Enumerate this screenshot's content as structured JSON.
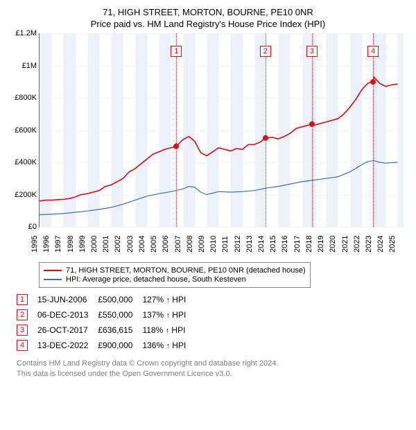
{
  "title_line1": "71, HIGH STREET, MORTON, BOURNE, PE10 0NR",
  "title_line2": "Price paid vs. HM Land Registry's House Price Index (HPI)",
  "chart": {
    "type": "line",
    "x_min": 1995,
    "x_max": 2025.5,
    "y_min": 0,
    "y_max": 1200000,
    "y_ticks": [
      0,
      200000,
      400000,
      600000,
      800000,
      1000000,
      1200000
    ],
    "y_tick_labels": [
      "£0",
      "£200K",
      "£400K",
      "£600K",
      "£800K",
      "£1M",
      "£1.2M"
    ],
    "x_ticks": [
      1995,
      1996,
      1997,
      1998,
      1999,
      2000,
      2001,
      2002,
      2003,
      2004,
      2005,
      2006,
      2007,
      2008,
      2009,
      2010,
      2011,
      2012,
      2013,
      2014,
      2015,
      2016,
      2017,
      2018,
      2019,
      2020,
      2021,
      2022,
      2023,
      2024,
      2025
    ],
    "background_color": "#ffffff",
    "grid_h_color": "#f2f2f2",
    "grid_v_color": "#f7f7f7",
    "vband_color": "rgba(200,215,240,0.35)",
    "vbands": [
      [
        1995,
        1996
      ],
      [
        1997,
        1998
      ],
      [
        1999,
        2000
      ],
      [
        2001,
        2002
      ],
      [
        2003,
        2004
      ],
      [
        2005,
        2006
      ],
      [
        2007,
        2008
      ],
      [
        2009,
        2010
      ],
      [
        2011,
        2012
      ],
      [
        2013,
        2014
      ],
      [
        2015,
        2016
      ],
      [
        2017,
        2018
      ],
      [
        2019,
        2020
      ],
      [
        2021,
        2022
      ],
      [
        2023,
        2024
      ],
      [
        2025,
        2025.5
      ]
    ],
    "series": [
      {
        "name": "71, HIGH STREET, MORTON, BOURNE, PE10 0NR (detached house)",
        "color": "#e30613",
        "width": 1.6,
        "points": [
          [
            1995,
            160000
          ],
          [
            1995.5,
            165000
          ],
          [
            1996,
            165000
          ],
          [
            1996.5,
            168000
          ],
          [
            1997,
            170000
          ],
          [
            1997.5,
            175000
          ],
          [
            1998,
            185000
          ],
          [
            1998.5,
            200000
          ],
          [
            1999,
            205000
          ],
          [
            1999.5,
            215000
          ],
          [
            2000,
            225000
          ],
          [
            2000.5,
            250000
          ],
          [
            2001,
            260000
          ],
          [
            2001.5,
            280000
          ],
          [
            2002,
            300000
          ],
          [
            2002.5,
            340000
          ],
          [
            2003,
            360000
          ],
          [
            2003.5,
            390000
          ],
          [
            2004,
            420000
          ],
          [
            2004.5,
            450000
          ],
          [
            2005,
            465000
          ],
          [
            2005.5,
            480000
          ],
          [
            2006,
            490000
          ],
          [
            2006.46,
            500000
          ],
          [
            2007,
            540000
          ],
          [
            2007.5,
            560000
          ],
          [
            2008,
            530000
          ],
          [
            2008.5,
            460000
          ],
          [
            2009,
            440000
          ],
          [
            2009.5,
            465000
          ],
          [
            2010,
            490000
          ],
          [
            2010.5,
            480000
          ],
          [
            2011,
            470000
          ],
          [
            2011.5,
            485000
          ],
          [
            2012,
            480000
          ],
          [
            2012.5,
            510000
          ],
          [
            2013,
            510000
          ],
          [
            2013.5,
            525000
          ],
          [
            2013.93,
            550000
          ],
          [
            2014.5,
            555000
          ],
          [
            2015,
            545000
          ],
          [
            2015.5,
            560000
          ],
          [
            2016,
            580000
          ],
          [
            2016.5,
            610000
          ],
          [
            2017,
            620000
          ],
          [
            2017.82,
            636615
          ],
          [
            2018,
            630000
          ],
          [
            2018.5,
            640000
          ],
          [
            2019,
            650000
          ],
          [
            2019.5,
            660000
          ],
          [
            2020,
            670000
          ],
          [
            2020.5,
            700000
          ],
          [
            2021,
            740000
          ],
          [
            2021.5,
            790000
          ],
          [
            2022,
            850000
          ],
          [
            2022.5,
            890000
          ],
          [
            2022.95,
            900000
          ],
          [
            2023,
            930000
          ],
          [
            2023.5,
            890000
          ],
          [
            2024,
            870000
          ],
          [
            2024.5,
            880000
          ],
          [
            2025,
            885000
          ]
        ]
      },
      {
        "name": "HPI: Average price, detached house, South Kesteven",
        "color": "#3b6fb6",
        "width": 1.2,
        "points": [
          [
            1995,
            75000
          ],
          [
            1996,
            78000
          ],
          [
            1997,
            82000
          ],
          [
            1998,
            90000
          ],
          [
            1999,
            98000
          ],
          [
            2000,
            108000
          ],
          [
            2001,
            120000
          ],
          [
            2002,
            140000
          ],
          [
            2003,
            165000
          ],
          [
            2004,
            190000
          ],
          [
            2005,
            205000
          ],
          [
            2006,
            218000
          ],
          [
            2007,
            235000
          ],
          [
            2007.5,
            250000
          ],
          [
            2008,
            245000
          ],
          [
            2008.5,
            215000
          ],
          [
            2009,
            200000
          ],
          [
            2009.5,
            208000
          ],
          [
            2010,
            218000
          ],
          [
            2011,
            215000
          ],
          [
            2012,
            218000
          ],
          [
            2013,
            225000
          ],
          [
            2014,
            240000
          ],
          [
            2015,
            250000
          ],
          [
            2016,
            265000
          ],
          [
            2017,
            280000
          ],
          [
            2018,
            290000
          ],
          [
            2019,
            300000
          ],
          [
            2020,
            310000
          ],
          [
            2021,
            340000
          ],
          [
            2022,
            385000
          ],
          [
            2022.5,
            405000
          ],
          [
            2023,
            410000
          ],
          [
            2023.5,
            400000
          ],
          [
            2024,
            395000
          ],
          [
            2025,
            400000
          ]
        ]
      }
    ],
    "markers": [
      {
        "n": "1",
        "x": 2006.46,
        "y": 500000,
        "color": "#e30613"
      },
      {
        "n": "2",
        "x": 2013.93,
        "y": 550000,
        "color": "#e30613"
      },
      {
        "n": "3",
        "x": 2017.82,
        "y": 636615,
        "color": "#e30613"
      },
      {
        "n": "4",
        "x": 2022.95,
        "y": 900000,
        "color": "#e30613"
      }
    ],
    "marker_box_top_offset": 18
  },
  "legend": [
    {
      "color": "#e30613",
      "label": "71, HIGH STREET, MORTON, BOURNE, PE10 0NR (detached house)"
    },
    {
      "color": "#3b6fb6",
      "label": "HPI: Average price, detached house, South Kesteven"
    }
  ],
  "transactions": [
    {
      "n": "1",
      "color": "#e30613",
      "date": "15-JUN-2006",
      "price": "£500,000",
      "pct": "127%",
      "sym": "↑",
      "vs": "HPI"
    },
    {
      "n": "2",
      "color": "#e30613",
      "date": "06-DEC-2013",
      "price": "£550,000",
      "pct": "137%",
      "sym": "↑",
      "vs": "HPI"
    },
    {
      "n": "3",
      "color": "#e30613",
      "date": "26-OCT-2017",
      "price": "£636,615",
      "pct": "118%",
      "sym": "↑",
      "vs": "HPI"
    },
    {
      "n": "4",
      "color": "#e30613",
      "date": "13-DEC-2022",
      "price": "£900,000",
      "pct": "136%",
      "sym": "↑",
      "vs": "HPI"
    }
  ],
  "footnote_l1": "Contains HM Land Registry data © Crown copyright and database right 2024.",
  "footnote_l2": "This data is licensed under the Open Government Licence v3.0."
}
